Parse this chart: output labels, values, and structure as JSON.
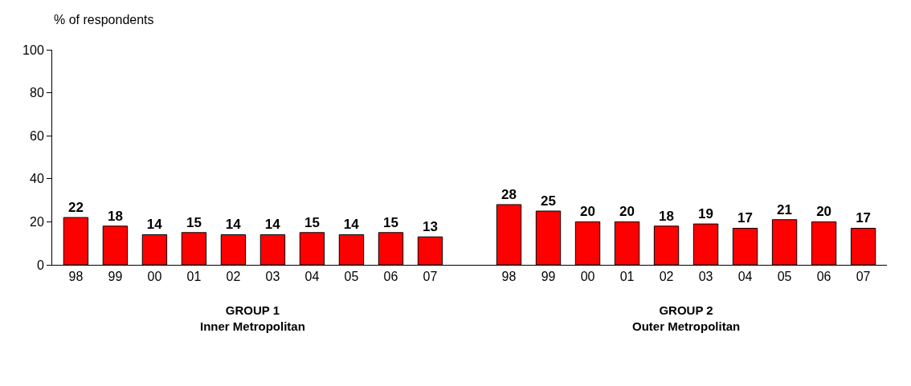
{
  "chart_data": {
    "type": "bar",
    "ylabel": "% of respondents",
    "categories": [
      "98",
      "99",
      "00",
      "01",
      "02",
      "03",
      "04",
      "05",
      "06",
      "07",
      null,
      "98",
      "99",
      "00",
      "01",
      "02",
      "03",
      "04",
      "05",
      "06",
      "07"
    ],
    "values": [
      22,
      18,
      14,
      15,
      14,
      14,
      15,
      14,
      15,
      13,
      null,
      28,
      25,
      20,
      20,
      18,
      19,
      17,
      21,
      20,
      17
    ],
    "color": "#ff0000",
    "ylim": [
      0,
      100
    ],
    "yticks": [
      0,
      20,
      40,
      60,
      80,
      100
    ],
    "legend": false,
    "data_labels": true,
    "annotations": [
      "GROUP 1\nInner Metropolitan",
      "GROUP 2\nOuter Metropolitan"
    ]
  }
}
